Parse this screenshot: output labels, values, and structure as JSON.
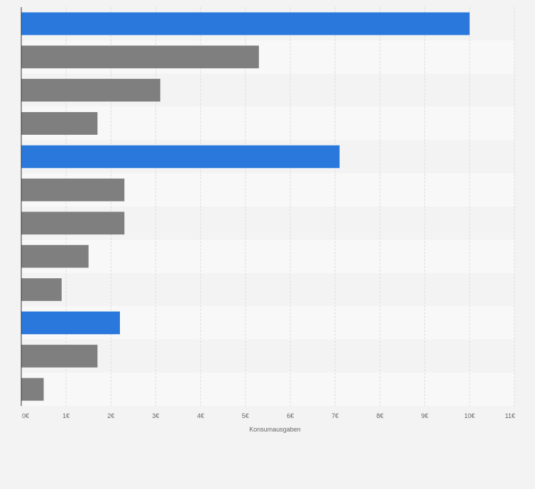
{
  "chart_data": {
    "type": "bar",
    "orientation": "horizontal",
    "xlabel": "Konsumausgaben",
    "xlim": [
      0,
      11
    ],
    "ticks": [
      0,
      1,
      2,
      3,
      4,
      5,
      6,
      7,
      8,
      9,
      10,
      11
    ],
    "tick_labels": [
      "0€",
      "1€",
      "2€",
      "3€",
      "4€",
      "5€",
      "6€",
      "7€",
      "8€",
      "9€",
      "10€",
      "11€"
    ],
    "values": [
      10.0,
      5.3,
      3.1,
      1.7,
      7.1,
      2.3,
      2.3,
      1.5,
      0.9,
      2.2,
      1.7,
      0.5
    ],
    "highlight": [
      true,
      false,
      false,
      false,
      true,
      false,
      false,
      false,
      false,
      true,
      false,
      false
    ],
    "colors": {
      "highlight": "#2b78dc",
      "default": "#7f7f7f"
    },
    "grid": true
  }
}
